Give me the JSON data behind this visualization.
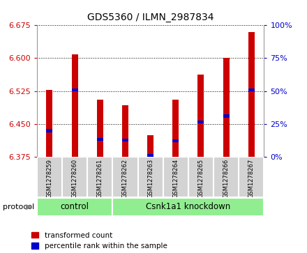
{
  "title": "GDS5360 / ILMN_2987834",
  "samples": [
    "GSM1278259",
    "GSM1278260",
    "GSM1278261",
    "GSM1278262",
    "GSM1278263",
    "GSM1278264",
    "GSM1278265",
    "GSM1278266",
    "GSM1278267"
  ],
  "red_values": [
    6.527,
    6.609,
    6.505,
    6.492,
    6.425,
    6.505,
    6.562,
    6.6,
    6.66
  ],
  "blue_values": [
    6.435,
    6.528,
    6.415,
    6.413,
    6.378,
    6.412,
    6.455,
    6.468,
    6.528
  ],
  "ylim": [
    6.375,
    6.675
  ],
  "yticks": [
    6.375,
    6.45,
    6.525,
    6.6,
    6.675
  ],
  "right_yticks": [
    0,
    25,
    50,
    75,
    100
  ],
  "right_ylim": [
    0,
    100
  ],
  "bar_width": 0.25,
  "red_color": "#cc0000",
  "blue_color": "#0000cc",
  "bar_bottom": 6.375,
  "control_color": "#90ee90",
  "knockdown_color": "#90ee90",
  "bg_color": "#ffffff",
  "tick_color_left": "#cc0000",
  "tick_color_right": "#0000cc",
  "figsize": [
    4.4,
    3.63
  ],
  "dpi": 100,
  "n_control": 3,
  "n_knockdown": 6
}
